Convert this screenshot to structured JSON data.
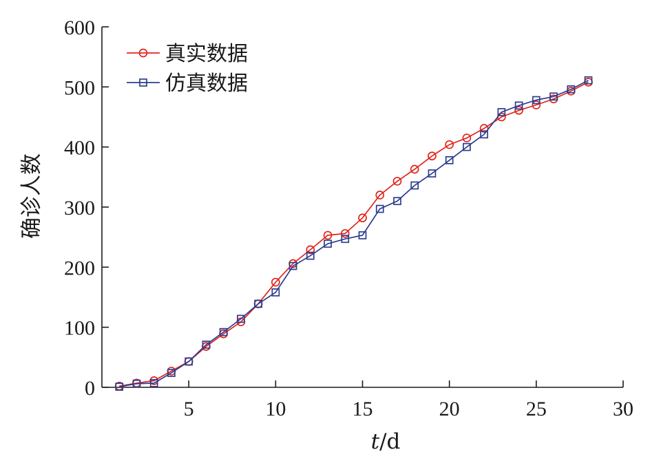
{
  "chart_data": {
    "type": "line",
    "xlabel_italic": "t",
    "xlabel_rest": "/d",
    "ylabel": "确诊人数",
    "xlim": [
      0,
      30
    ],
    "ylim": [
      0,
      600
    ],
    "x_ticks": [
      5,
      10,
      15,
      20,
      25,
      30
    ],
    "y_ticks": [
      0,
      100,
      200,
      300,
      400,
      500,
      600
    ],
    "legend_position": "top-left",
    "grid": false,
    "x": [
      1,
      2,
      3,
      4,
      5,
      6,
      7,
      8,
      9,
      10,
      11,
      12,
      13,
      14,
      15,
      16,
      17,
      18,
      19,
      20,
      21,
      22,
      23,
      24,
      25,
      26,
      27,
      28
    ],
    "series": [
      {
        "name": "真实数据",
        "marker": "circle",
        "color": "#e0241c",
        "values": [
          2,
          7,
          11,
          27,
          43,
          68,
          89,
          109,
          139,
          175,
          206,
          229,
          253,
          256,
          282,
          320,
          343,
          363,
          385,
          404,
          415,
          431,
          450,
          461,
          470,
          480,
          493,
          508
        ]
      },
      {
        "name": "仿真数据",
        "marker": "square",
        "color": "#2b3d8f",
        "values": [
          1,
          6,
          7,
          24,
          43,
          71,
          92,
          114,
          139,
          158,
          202,
          219,
          239,
          247,
          253,
          297,
          310,
          336,
          356,
          378,
          400,
          421,
          458,
          469,
          478,
          484,
          496,
          511
        ]
      }
    ]
  }
}
